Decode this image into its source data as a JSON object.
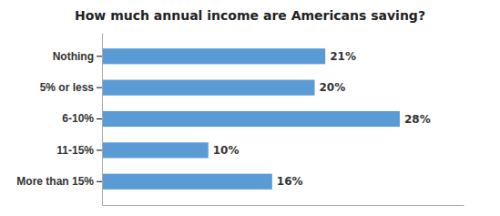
{
  "chart_data": {
    "type": "bar",
    "orientation": "horizontal",
    "title": "How much annual income are Americans saving?",
    "categories": [
      "Nothing",
      "5% or less",
      "6-10%",
      "11-15%",
      "More than 15%"
    ],
    "values": [
      21,
      20,
      28,
      10,
      16
    ],
    "value_labels": [
      "21%",
      "20%",
      "28%",
      "10%",
      "16%"
    ],
    "color": "#5B9BD5",
    "xlim": [
      0,
      34
    ],
    "data_labels": true,
    "tick_labels": "y",
    "grid": false
  }
}
